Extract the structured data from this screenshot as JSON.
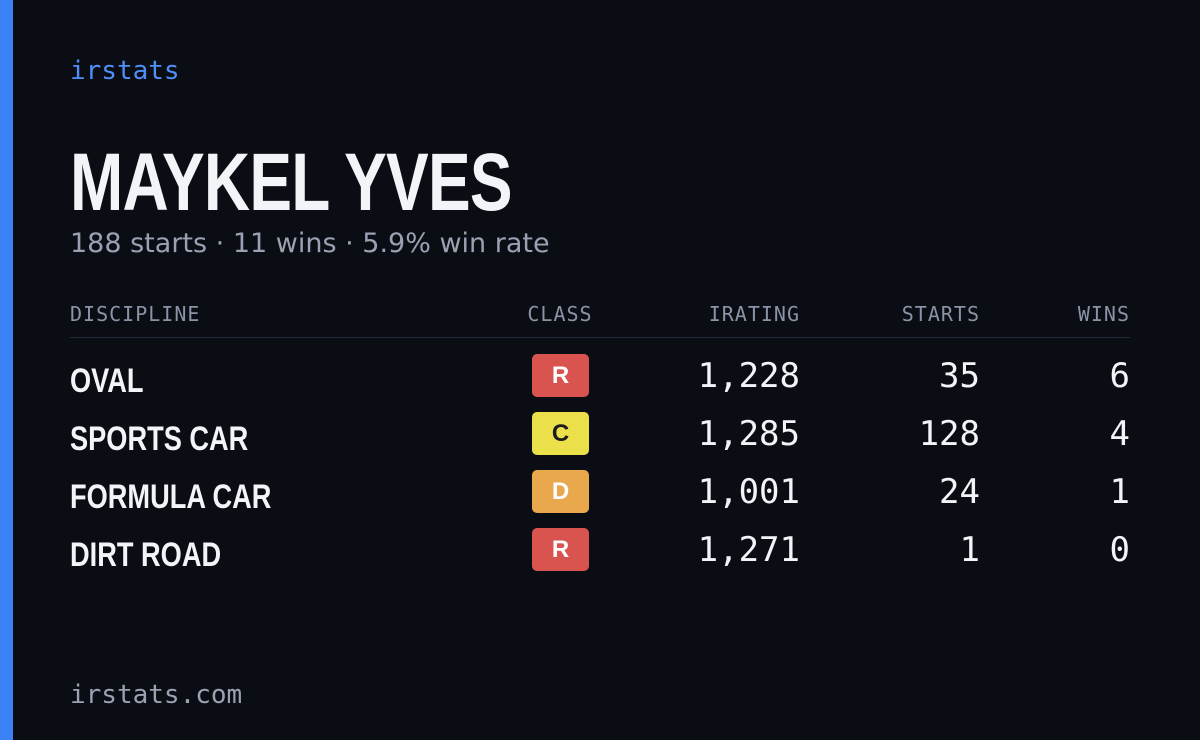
{
  "brand": "irstats",
  "name": "MAYKEL YVES",
  "subtitle": "188 starts · 11 wins · 5.9% win rate",
  "table": {
    "headers": [
      "DISCIPLINE",
      "CLASS",
      "IRATING",
      "STARTS",
      "WINS"
    ],
    "rows": [
      {
        "discipline": "OVAL",
        "class": "R",
        "class_color": "#d9534f",
        "irating": "1,228",
        "starts": "35",
        "wins": "6"
      },
      {
        "discipline": "SPORTS CAR",
        "class": "C",
        "class_color": "#ebe04a",
        "irating": "1,285",
        "starts": "128",
        "wins": "4"
      },
      {
        "discipline": "FORMULA CAR",
        "class": "D",
        "class_color": "#e9a84c",
        "irating": "1,001",
        "starts": "24",
        "wins": "1"
      },
      {
        "discipline": "DIRT ROAD",
        "class": "R",
        "class_color": "#d9534f",
        "irating": "1,271",
        "starts": "1",
        "wins": "0"
      }
    ]
  },
  "footer": "irstats.com"
}
